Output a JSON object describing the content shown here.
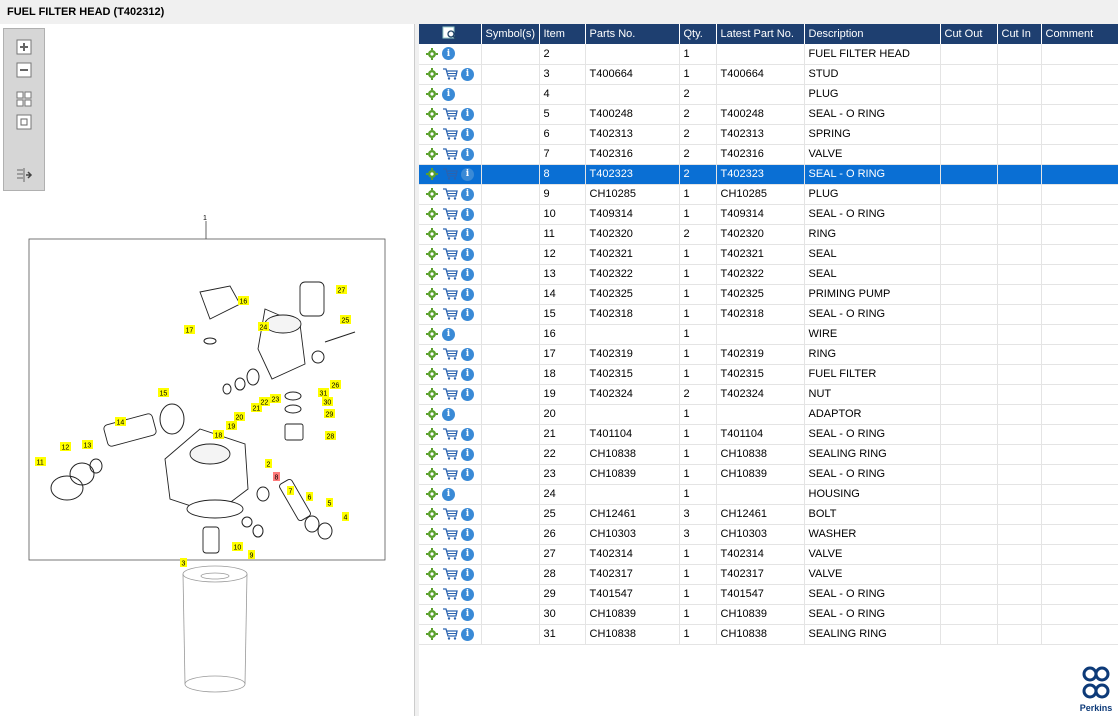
{
  "window": {
    "title": "FUEL FILTER HEAD (T402312)"
  },
  "toolbar": {
    "zoom_in": "zoom-in-icon",
    "zoom_out": "zoom-out-icon",
    "fit_all": "fit-all-icon",
    "fit_one": "fit-window-icon",
    "toggle": "toggle-panel-icon"
  },
  "diagram": {
    "assembly_label": "1",
    "callouts": [
      {
        "n": "2",
        "highlight": false
      },
      {
        "n": "3",
        "highlight": false
      },
      {
        "n": "4",
        "highlight": false
      },
      {
        "n": "5",
        "highlight": false
      },
      {
        "n": "6",
        "highlight": false
      },
      {
        "n": "7",
        "highlight": false
      },
      {
        "n": "8",
        "highlight": true
      },
      {
        "n": "9",
        "highlight": false
      },
      {
        "n": "10",
        "highlight": false
      },
      {
        "n": "11",
        "highlight": false
      },
      {
        "n": "12",
        "highlight": false
      },
      {
        "n": "13",
        "highlight": false
      },
      {
        "n": "14",
        "highlight": false
      },
      {
        "n": "15",
        "highlight": false
      },
      {
        "n": "16",
        "highlight": false
      },
      {
        "n": "17",
        "highlight": false
      },
      {
        "n": "18",
        "highlight": false
      },
      {
        "n": "19",
        "highlight": false
      },
      {
        "n": "20",
        "highlight": false
      },
      {
        "n": "21",
        "highlight": false
      },
      {
        "n": "22",
        "highlight": false
      },
      {
        "n": "23",
        "highlight": false
      },
      {
        "n": "24",
        "highlight": false
      },
      {
        "n": "25",
        "highlight": false
      },
      {
        "n": "26",
        "highlight": false
      },
      {
        "n": "27",
        "highlight": false
      },
      {
        "n": "28",
        "highlight": false
      },
      {
        "n": "29",
        "highlight": false
      },
      {
        "n": "30",
        "highlight": false
      },
      {
        "n": "31",
        "highlight": false
      }
    ]
  },
  "table": {
    "columns": [
      "",
      "Symbol(s)",
      "Item",
      "Parts No.",
      "Qty.",
      "Latest Part No.",
      "Description",
      "Cut Out",
      "Cut In",
      "Comment"
    ],
    "selected_item": "8",
    "rows": [
      {
        "cart": false,
        "item": "2",
        "part": "",
        "qty": "1",
        "latest": "",
        "desc": "FUEL FILTER HEAD"
      },
      {
        "cart": true,
        "item": "3",
        "part": "T400664",
        "qty": "1",
        "latest": "T400664",
        "desc": "STUD"
      },
      {
        "cart": false,
        "item": "4",
        "part": "",
        "qty": "2",
        "latest": "",
        "desc": "PLUG"
      },
      {
        "cart": true,
        "item": "5",
        "part": "T400248",
        "qty": "2",
        "latest": "T400248",
        "desc": "SEAL - O RING"
      },
      {
        "cart": true,
        "item": "6",
        "part": "T402313",
        "qty": "2",
        "latest": "T402313",
        "desc": "SPRING"
      },
      {
        "cart": true,
        "item": "7",
        "part": "T402316",
        "qty": "2",
        "latest": "T402316",
        "desc": "VALVE"
      },
      {
        "cart": true,
        "item": "8",
        "part": "T402323",
        "qty": "2",
        "latest": "T402323",
        "desc": "SEAL - O RING"
      },
      {
        "cart": true,
        "item": "9",
        "part": "CH10285",
        "qty": "1",
        "latest": "CH10285",
        "desc": "PLUG"
      },
      {
        "cart": true,
        "item": "10",
        "part": "T409314",
        "qty": "1",
        "latest": "T409314",
        "desc": "SEAL - O RING"
      },
      {
        "cart": true,
        "item": "11",
        "part": "T402320",
        "qty": "2",
        "latest": "T402320",
        "desc": "RING"
      },
      {
        "cart": true,
        "item": "12",
        "part": "T402321",
        "qty": "1",
        "latest": "T402321",
        "desc": "SEAL"
      },
      {
        "cart": true,
        "item": "13",
        "part": "T402322",
        "qty": "1",
        "latest": "T402322",
        "desc": "SEAL"
      },
      {
        "cart": true,
        "item": "14",
        "part": "T402325",
        "qty": "1",
        "latest": "T402325",
        "desc": "PRIMING PUMP"
      },
      {
        "cart": true,
        "item": "15",
        "part": "T402318",
        "qty": "1",
        "latest": "T402318",
        "desc": "SEAL - O RING"
      },
      {
        "cart": false,
        "item": "16",
        "part": "",
        "qty": "1",
        "latest": "",
        "desc": "WIRE"
      },
      {
        "cart": true,
        "item": "17",
        "part": "T402319",
        "qty": "1",
        "latest": "T402319",
        "desc": "RING"
      },
      {
        "cart": true,
        "item": "18",
        "part": "T402315",
        "qty": "1",
        "latest": "T402315",
        "desc": "FUEL FILTER"
      },
      {
        "cart": true,
        "item": "19",
        "part": "T402324",
        "qty": "2",
        "latest": "T402324",
        "desc": "NUT"
      },
      {
        "cart": false,
        "item": "20",
        "part": "",
        "qty": "1",
        "latest": "",
        "desc": "ADAPTOR"
      },
      {
        "cart": true,
        "item": "21",
        "part": "T401104",
        "qty": "1",
        "latest": "T401104",
        "desc": "SEAL - O RING"
      },
      {
        "cart": true,
        "item": "22",
        "part": "CH10838",
        "qty": "1",
        "latest": "CH10838",
        "desc": "SEALING RING"
      },
      {
        "cart": true,
        "item": "23",
        "part": "CH10839",
        "qty": "1",
        "latest": "CH10839",
        "desc": "SEAL - O RING"
      },
      {
        "cart": false,
        "item": "24",
        "part": "",
        "qty": "1",
        "latest": "",
        "desc": "HOUSING"
      },
      {
        "cart": true,
        "item": "25",
        "part": "CH12461",
        "qty": "3",
        "latest": "CH12461",
        "desc": "BOLT"
      },
      {
        "cart": true,
        "item": "26",
        "part": "CH10303",
        "qty": "3",
        "latest": "CH10303",
        "desc": "WASHER"
      },
      {
        "cart": true,
        "item": "27",
        "part": "T402314",
        "qty": "1",
        "latest": "T402314",
        "desc": "VALVE"
      },
      {
        "cart": true,
        "item": "28",
        "part": "T402317",
        "qty": "1",
        "latest": "T402317",
        "desc": "VALVE"
      },
      {
        "cart": true,
        "item": "29",
        "part": "T401547",
        "qty": "1",
        "latest": "T401547",
        "desc": "SEAL - O RING"
      },
      {
        "cart": true,
        "item": "30",
        "part": "CH10839",
        "qty": "1",
        "latest": "CH10839",
        "desc": "SEAL - O RING"
      },
      {
        "cart": true,
        "item": "31",
        "part": "CH10838",
        "qty": "1",
        "latest": "CH10838",
        "desc": "SEALING RING"
      }
    ]
  },
  "logo": {
    "text": "Perkins",
    "icon": "perkins-logo-icon"
  },
  "colors": {
    "header_bg": "#1e3f70",
    "selected_row": "#0a6fd4",
    "callout": "#ffff00",
    "callout_highlight": "#ff7b7b"
  }
}
